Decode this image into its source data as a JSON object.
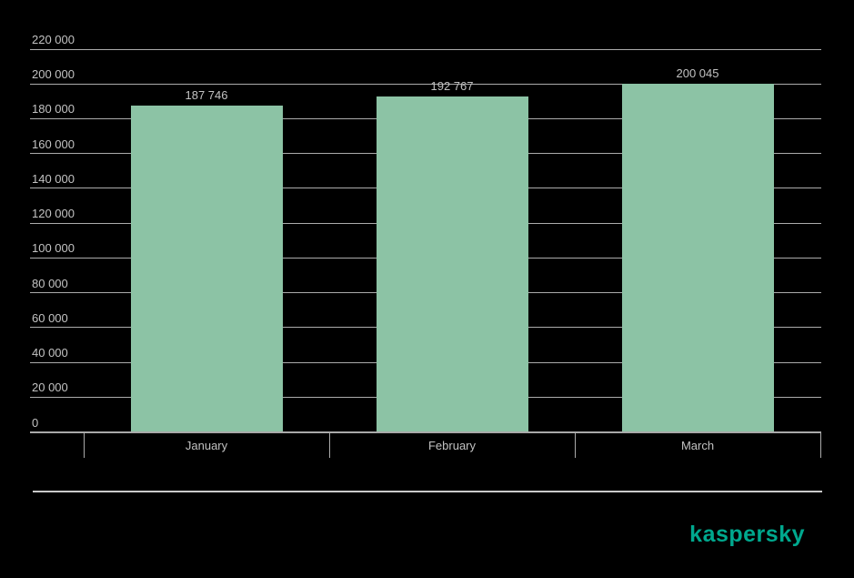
{
  "background_color": "#000000",
  "chart_data": {
    "type": "bar",
    "categories": [
      "January",
      "February",
      "March"
    ],
    "values": [
      187746,
      192767,
      200045
    ],
    "value_labels": [
      "187 746",
      "192 767",
      "200 045"
    ],
    "y_tick_values": [
      0,
      20000,
      40000,
      60000,
      80000,
      100000,
      120000,
      140000,
      160000,
      180000,
      200000,
      220000
    ],
    "y_tick_labels": [
      "0",
      "20 000",
      "40 000",
      "60 000",
      "80 000",
      "100 000",
      "120 000",
      "140 000",
      "160 000",
      "180 000",
      "200 000",
      "220 000"
    ],
    "ylim": [
      0,
      220000
    ],
    "grid": true,
    "legend": "none",
    "title": "",
    "xlabel": "",
    "ylabel": "",
    "bar_color": "#8CC3A5",
    "grid_color": "#ABABAB",
    "axis_color": "#A9A9A9",
    "text_color": "#C2C2C2"
  },
  "footer": {
    "brand": "kaspersky",
    "brand_color": "#00A88E",
    "divider_color": "#C9C9C9"
  }
}
